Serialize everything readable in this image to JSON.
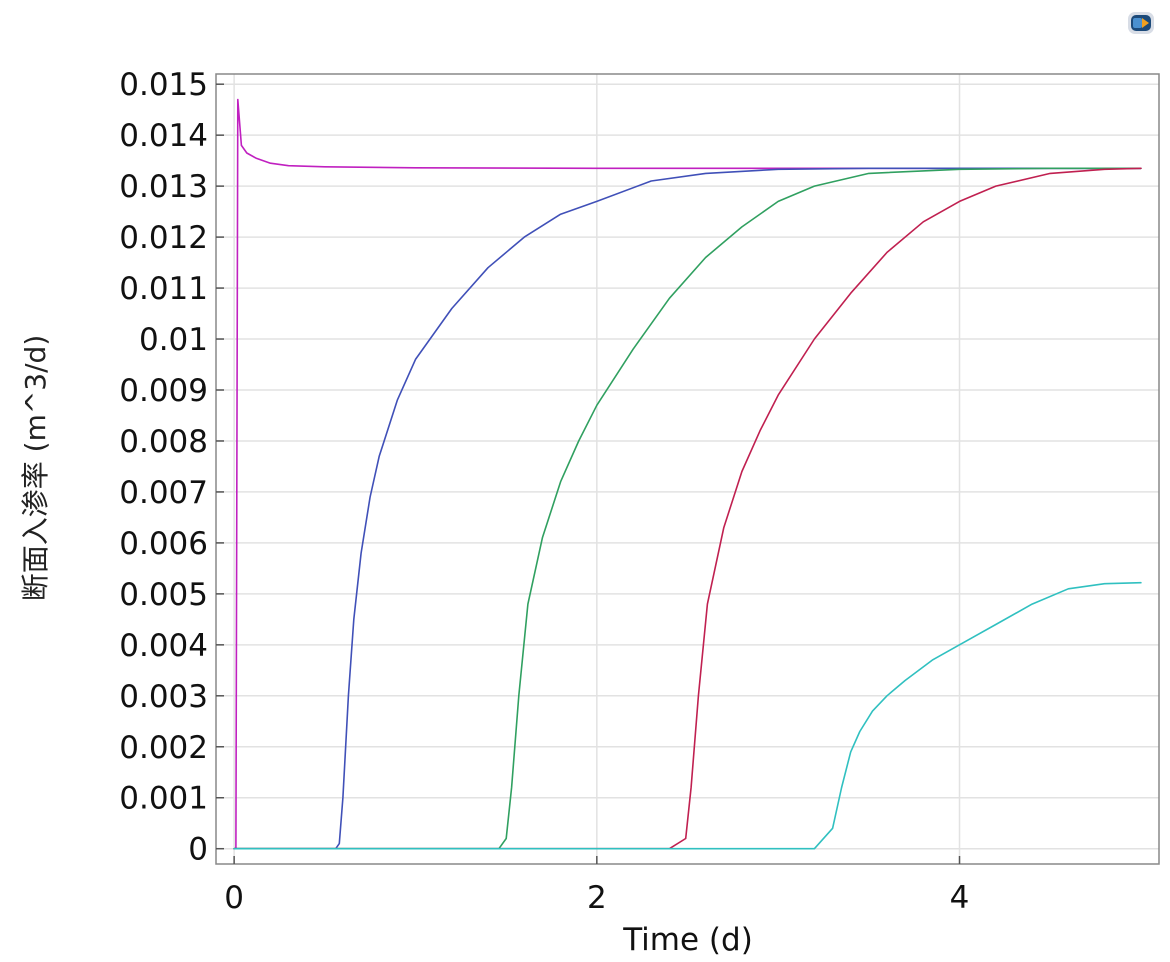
{
  "app_icon": "comsol-icon",
  "chart_data": {
    "type": "line",
    "xlabel": "Time (d)",
    "ylabel": "断面入渗率 (m^3/d)",
    "xlim": [
      -0.1,
      5.1
    ],
    "ylim": [
      -0.0003,
      0.0152
    ],
    "xticks": [
      0,
      2,
      4
    ],
    "xtick_labels": [
      "0",
      "2",
      "4"
    ],
    "yticks": [
      0,
      0.001,
      0.002,
      0.003,
      0.004,
      0.005,
      0.006,
      0.007,
      0.008,
      0.009,
      0.01,
      0.011,
      0.012,
      0.013,
      0.014,
      0.015
    ],
    "ytick_labels": [
      "0",
      "0.001",
      "0.002",
      "0.003",
      "0.004",
      "0.005",
      "0.006",
      "0.007",
      "0.008",
      "0.009",
      "0.01",
      "0.011",
      "0.012",
      "0.013",
      "0.014",
      "0.015"
    ],
    "grid": true,
    "series": [
      {
        "color": "#c020c0",
        "points": [
          [
            0.0,
            0.0
          ],
          [
            0.01,
            0.0
          ],
          [
            0.02,
            0.0147
          ],
          [
            0.04,
            0.0138
          ],
          [
            0.07,
            0.01365
          ],
          [
            0.12,
            0.01355
          ],
          [
            0.2,
            0.01345
          ],
          [
            0.3,
            0.0134
          ],
          [
            0.5,
            0.01338
          ],
          [
            1.0,
            0.01336
          ],
          [
            2.0,
            0.01335
          ],
          [
            3.0,
            0.01335
          ],
          [
            4.0,
            0.01335
          ],
          [
            5.0,
            0.01335
          ]
        ]
      },
      {
        "color": "#4050b8",
        "points": [
          [
            0.0,
            0.0
          ],
          [
            0.56,
            0.0
          ],
          [
            0.58,
            0.0001
          ],
          [
            0.6,
            0.001
          ],
          [
            0.63,
            0.003
          ],
          [
            0.66,
            0.0045
          ],
          [
            0.7,
            0.0058
          ],
          [
            0.75,
            0.0069
          ],
          [
            0.8,
            0.0077
          ],
          [
            0.9,
            0.0088
          ],
          [
            1.0,
            0.0096
          ],
          [
            1.2,
            0.0106
          ],
          [
            1.4,
            0.0114
          ],
          [
            1.6,
            0.012
          ],
          [
            1.8,
            0.01245
          ],
          [
            2.0,
            0.0127
          ],
          [
            2.3,
            0.0131
          ],
          [
            2.6,
            0.01325
          ],
          [
            3.0,
            0.01333
          ],
          [
            3.5,
            0.01335
          ],
          [
            5.0,
            0.01335
          ]
        ]
      },
      {
        "color": "#30a060",
        "points": [
          [
            0.0,
            0.0
          ],
          [
            1.46,
            0.0
          ],
          [
            1.5,
            0.0002
          ],
          [
            1.53,
            0.0012
          ],
          [
            1.57,
            0.003
          ],
          [
            1.62,
            0.0048
          ],
          [
            1.7,
            0.0061
          ],
          [
            1.8,
            0.0072
          ],
          [
            1.9,
            0.008
          ],
          [
            2.0,
            0.0087
          ],
          [
            2.2,
            0.0098
          ],
          [
            2.4,
            0.0108
          ],
          [
            2.6,
            0.0116
          ],
          [
            2.8,
            0.0122
          ],
          [
            3.0,
            0.0127
          ],
          [
            3.2,
            0.013
          ],
          [
            3.5,
            0.01325
          ],
          [
            4.0,
            0.01333
          ],
          [
            4.5,
            0.01335
          ],
          [
            5.0,
            0.01335
          ]
        ]
      },
      {
        "color": "#c02050",
        "points": [
          [
            0.0,
            0.0
          ],
          [
            2.4,
            0.0
          ],
          [
            2.49,
            0.0002
          ],
          [
            2.52,
            0.0012
          ],
          [
            2.56,
            0.003
          ],
          [
            2.61,
            0.0048
          ],
          [
            2.7,
            0.0063
          ],
          [
            2.8,
            0.0074
          ],
          [
            2.9,
            0.0082
          ],
          [
            3.0,
            0.0089
          ],
          [
            3.2,
            0.01
          ],
          [
            3.4,
            0.0109
          ],
          [
            3.6,
            0.0117
          ],
          [
            3.8,
            0.0123
          ],
          [
            4.0,
            0.0127
          ],
          [
            4.2,
            0.013
          ],
          [
            4.5,
            0.01325
          ],
          [
            4.8,
            0.01333
          ],
          [
            5.0,
            0.01335
          ]
        ]
      },
      {
        "color": "#30c0c0",
        "points": [
          [
            0.0,
            0.0
          ],
          [
            3.2,
            0.0
          ],
          [
            3.3,
            0.0004
          ],
          [
            3.35,
            0.0012
          ],
          [
            3.4,
            0.0019
          ],
          [
            3.45,
            0.0023
          ],
          [
            3.52,
            0.0027
          ],
          [
            3.6,
            0.003
          ],
          [
            3.7,
            0.0033
          ],
          [
            3.85,
            0.0037
          ],
          [
            4.0,
            0.004
          ],
          [
            4.2,
            0.0044
          ],
          [
            4.4,
            0.0048
          ],
          [
            4.6,
            0.0051
          ],
          [
            4.8,
            0.0052
          ],
          [
            5.0,
            0.00522
          ]
        ]
      }
    ]
  }
}
